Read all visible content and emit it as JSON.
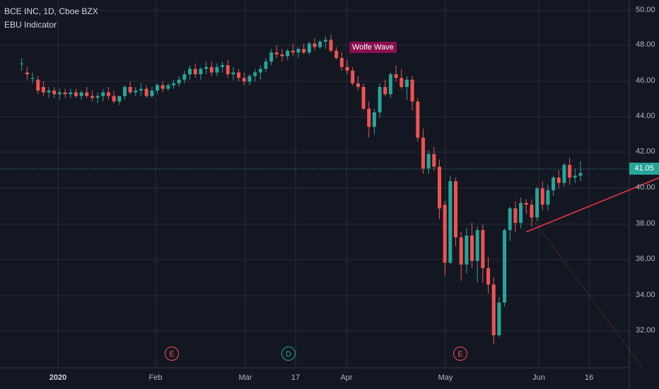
{
  "header": {
    "title": "BCE INC, 1D, Cboe BZX",
    "indicator": "EBU Indicator"
  },
  "pattern_label": "Wolfe Wave",
  "colors": {
    "background": "#131722",
    "up": "#26a69a",
    "down": "#ef5350",
    "grid": "#2a2e39",
    "line": "#f23645",
    "label_bg": "#880e4f"
  },
  "current_price": "41.05",
  "y_axis": [
    "50.00",
    "48.00",
    "46.00",
    "44.00",
    "42.00",
    "40.00",
    "38.00",
    "36.00",
    "34.00",
    "32.00"
  ],
  "x_axis": [
    "2020",
    "Feb",
    "Mar",
    "17",
    "Apr",
    "May",
    "Jun",
    "16"
  ],
  "events": [
    {
      "label": "E",
      "kind": "earnings"
    },
    {
      "label": "D",
      "kind": "dividend"
    },
    {
      "label": "E",
      "kind": "earnings"
    }
  ],
  "chart_data": {
    "type": "candlestick",
    "ylim": [
      30.3,
      50.6
    ],
    "x_range": [
      -4,
      112
    ],
    "candles": [
      [
        47.1,
        47.4,
        46.7,
        47.1
      ],
      [
        46.6,
        46.9,
        46.2,
        46.5
      ],
      [
        46.3,
        46.6,
        46.0,
        46.3
      ],
      [
        46.2,
        46.4,
        45.4,
        45.6
      ],
      [
        45.8,
        46.1,
        45.3,
        45.5
      ],
      [
        45.5,
        45.8,
        45.2,
        45.6
      ],
      [
        45.6,
        45.8,
        45.2,
        45.4
      ],
      [
        45.4,
        45.7,
        45.1,
        45.5
      ],
      [
        45.5,
        45.7,
        45.2,
        45.4
      ],
      [
        45.4,
        45.7,
        45.2,
        45.5
      ],
      [
        45.5,
        45.7,
        45.2,
        45.3
      ],
      [
        45.3,
        45.6,
        45.1,
        45.5
      ],
      [
        45.5,
        45.8,
        45.2,
        45.3
      ],
      [
        45.3,
        45.6,
        45.0,
        45.2
      ],
      [
        45.2,
        45.5,
        44.9,
        45.3
      ],
      [
        45.3,
        45.7,
        45.0,
        45.5
      ],
      [
        45.5,
        45.8,
        45.1,
        45.3
      ],
      [
        45.3,
        45.6,
        44.9,
        45.0
      ],
      [
        45.0,
        45.3,
        44.8,
        45.3
      ],
      [
        45.3,
        45.9,
        45.1,
        45.8
      ],
      [
        45.8,
        46.1,
        45.4,
        45.5
      ],
      [
        45.5,
        45.8,
        45.3,
        45.6
      ],
      [
        45.6,
        46.0,
        45.3,
        45.7
      ],
      [
        45.7,
        45.9,
        45.2,
        45.3
      ],
      [
        45.3,
        45.8,
        45.2,
        45.6
      ],
      [
        45.6,
        46.0,
        45.4,
        45.9
      ],
      [
        45.9,
        46.1,
        45.5,
        45.7
      ],
      [
        45.7,
        46.0,
        45.6,
        45.9
      ],
      [
        45.9,
        46.2,
        45.7,
        46.0
      ],
      [
        46.0,
        46.4,
        45.8,
        46.2
      ],
      [
        46.2,
        46.7,
        46.0,
        46.5
      ],
      [
        46.5,
        47.0,
        46.2,
        46.8
      ],
      [
        46.8,
        47.1,
        46.3,
        46.5
      ],
      [
        46.5,
        46.9,
        46.2,
        46.8
      ],
      [
        46.8,
        47.2,
        46.5,
        46.9
      ],
      [
        46.9,
        47.2,
        46.4,
        46.6
      ],
      [
        46.6,
        47.1,
        46.4,
        46.9
      ],
      [
        46.9,
        47.2,
        46.6,
        47.0
      ],
      [
        47.0,
        47.3,
        46.3,
        46.5
      ],
      [
        46.5,
        46.9,
        46.2,
        46.6
      ],
      [
        46.6,
        46.8,
        46.1,
        46.3
      ],
      [
        46.3,
        46.6,
        45.9,
        46.1
      ],
      [
        46.1,
        46.5,
        45.9,
        46.4
      ],
      [
        46.4,
        46.8,
        46.1,
        46.6
      ],
      [
        46.6,
        47.0,
        46.2,
        46.8
      ],
      [
        46.8,
        47.4,
        46.6,
        47.2
      ],
      [
        47.2,
        47.9,
        47.0,
        47.7
      ],
      [
        47.7,
        48.1,
        47.4,
        47.6
      ],
      [
        47.6,
        47.9,
        47.2,
        47.5
      ],
      [
        47.5,
        47.9,
        47.3,
        47.8
      ],
      [
        47.8,
        48.2,
        47.5,
        47.7
      ],
      [
        47.7,
        48.0,
        47.4,
        47.9
      ],
      [
        47.9,
        48.2,
        47.6,
        47.7
      ],
      [
        47.7,
        48.3,
        47.6,
        48.2
      ],
      [
        48.2,
        48.5,
        47.8,
        48.0
      ],
      [
        48.0,
        48.4,
        47.9,
        48.3
      ],
      [
        48.3,
        48.6,
        47.9,
        48.4
      ],
      [
        48.4,
        48.7,
        47.7,
        47.8
      ],
      [
        47.8,
        48.0,
        47.3,
        47.4
      ],
      [
        47.4,
        47.7,
        46.7,
        46.9
      ],
      [
        46.9,
        47.3,
        46.5,
        46.7
      ],
      [
        46.7,
        46.9,
        45.9,
        46.0
      ],
      [
        46.0,
        46.4,
        45.6,
        45.8
      ],
      [
        45.8,
        46.0,
        44.5,
        44.6
      ],
      [
        44.6,
        45.0,
        43.0,
        43.6
      ],
      [
        43.6,
        44.6,
        43.2,
        44.4
      ],
      [
        44.4,
        46.0,
        44.1,
        45.8
      ],
      [
        45.8,
        46.2,
        45.3,
        45.4
      ],
      [
        45.4,
        46.6,
        45.2,
        46.5
      ],
      [
        46.5,
        47.0,
        46.1,
        46.3
      ],
      [
        46.3,
        46.8,
        45.7,
        45.8
      ],
      [
        45.8,
        46.4,
        45.1,
        46.2
      ],
      [
        46.2,
        46.4,
        44.5,
        45.0
      ],
      [
        45.0,
        45.2,
        42.8,
        43.0
      ],
      [
        43.0,
        43.5,
        41.0,
        41.3
      ],
      [
        41.3,
        42.3,
        41.0,
        42.1
      ],
      [
        42.1,
        42.5,
        41.2,
        41.4
      ],
      [
        41.4,
        41.8,
        38.5,
        39.1
      ],
      [
        39.3,
        39.5,
        35.4,
        36.1
      ],
      [
        36.1,
        40.9,
        36.0,
        40.6
      ],
      [
        40.6,
        40.8,
        37.0,
        37.5
      ],
      [
        37.5,
        37.8,
        35.1,
        36.0
      ],
      [
        36.0,
        38.0,
        35.5,
        37.6
      ],
      [
        37.6,
        38.3,
        35.8,
        36.2
      ],
      [
        36.2,
        38.1,
        35.0,
        37.9
      ],
      [
        37.9,
        38.2,
        35.0,
        35.8
      ],
      [
        35.8,
        36.4,
        34.4,
        34.9
      ],
      [
        34.9,
        35.3,
        31.6,
        32.1
      ],
      [
        32.1,
        34.2,
        32.0,
        33.9
      ],
      [
        33.9,
        38.0,
        33.7,
        37.9
      ],
      [
        37.9,
        39.2,
        37.3,
        39.1
      ],
      [
        39.1,
        39.5,
        37.8,
        38.3
      ],
      [
        38.3,
        39.7,
        38.0,
        39.4
      ],
      [
        39.4,
        39.6,
        38.8,
        39.3
      ],
      [
        39.3,
        39.6,
        38.1,
        38.6
      ],
      [
        38.6,
        40.3,
        38.4,
        40.2
      ],
      [
        40.2,
        40.6,
        39.0,
        39.3
      ],
      [
        39.3,
        40.4,
        39.0,
        40.1
      ],
      [
        40.1,
        40.9,
        39.8,
        40.8
      ],
      [
        40.8,
        41.2,
        40.2,
        40.5
      ],
      [
        40.5,
        41.6,
        40.3,
        41.5
      ],
      [
        41.5,
        41.9,
        40.4,
        40.8
      ],
      [
        40.8,
        41.3,
        40.5,
        40.9
      ],
      [
        40.9,
        41.7,
        40.6,
        41.05
      ]
    ],
    "wolfe_lines": [
      {
        "style": "solid",
        "from": [
          93,
          37.8
        ],
        "to": [
          198,
          50.6
        ]
      },
      {
        "style": "dotted",
        "from": [
          91,
          39.8
        ],
        "to": [
          114.5,
          30.3
        ]
      }
    ]
  }
}
